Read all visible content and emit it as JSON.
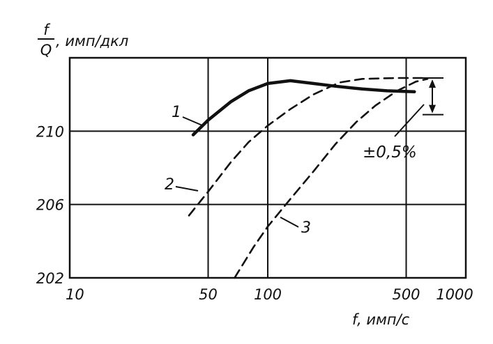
{
  "chart_data": {
    "type": "line",
    "x_scale": "log",
    "xlim": [
      10,
      1000
    ],
    "ylim": [
      202,
      214
    ],
    "grid": true,
    "xlabel": "f, имп/с",
    "ylabel_num": "f",
    "ylabel_den": "Q",
    "ylabel_unit": ", имп/дкл",
    "x_ticks": [
      {
        "value": 10,
        "label": "10"
      },
      {
        "value": 50,
        "label": "50"
      },
      {
        "value": 100,
        "label": "100"
      },
      {
        "value": 500,
        "label": "500"
      },
      {
        "value": 1000,
        "label": "1000"
      }
    ],
    "y_ticks": [
      {
        "value": 202,
        "label": "202"
      },
      {
        "value": 206,
        "label": "206"
      },
      {
        "value": 210,
        "label": "210"
      }
    ],
    "series": [
      {
        "label": "1",
        "style": "solid",
        "points": [
          [
            42,
            209.8
          ],
          [
            50,
            210.6
          ],
          [
            65,
            211.6
          ],
          [
            80,
            212.2
          ],
          [
            100,
            212.6
          ],
          [
            130,
            212.75
          ],
          [
            170,
            212.6
          ],
          [
            220,
            212.45
          ],
          [
            300,
            212.3
          ],
          [
            400,
            212.2
          ],
          [
            550,
            212.15
          ]
        ]
      },
      {
        "label": "2",
        "style": "dashed",
        "points": [
          [
            40,
            205.4
          ],
          [
            50,
            206.7
          ],
          [
            65,
            208.3
          ],
          [
            80,
            209.4
          ],
          [
            100,
            210.3
          ],
          [
            130,
            211.2
          ],
          [
            170,
            212.0
          ],
          [
            230,
            212.65
          ],
          [
            300,
            212.85
          ],
          [
            450,
            212.9
          ],
          [
            620,
            212.9
          ]
        ]
      },
      {
        "label": "3",
        "style": "dashed",
        "points": [
          [
            68,
            202.0
          ],
          [
            85,
            203.7
          ],
          [
            100,
            204.8
          ],
          [
            130,
            206.3
          ],
          [
            170,
            207.8
          ],
          [
            220,
            209.3
          ],
          [
            280,
            210.5
          ],
          [
            350,
            211.4
          ],
          [
            450,
            212.2
          ],
          [
            560,
            212.7
          ],
          [
            640,
            212.85
          ]
        ]
      }
    ],
    "annotation": {
      "text": "±0,5%",
      "range_upper": 212.9,
      "range_lower": 210.9,
      "at_x": 760
    }
  }
}
